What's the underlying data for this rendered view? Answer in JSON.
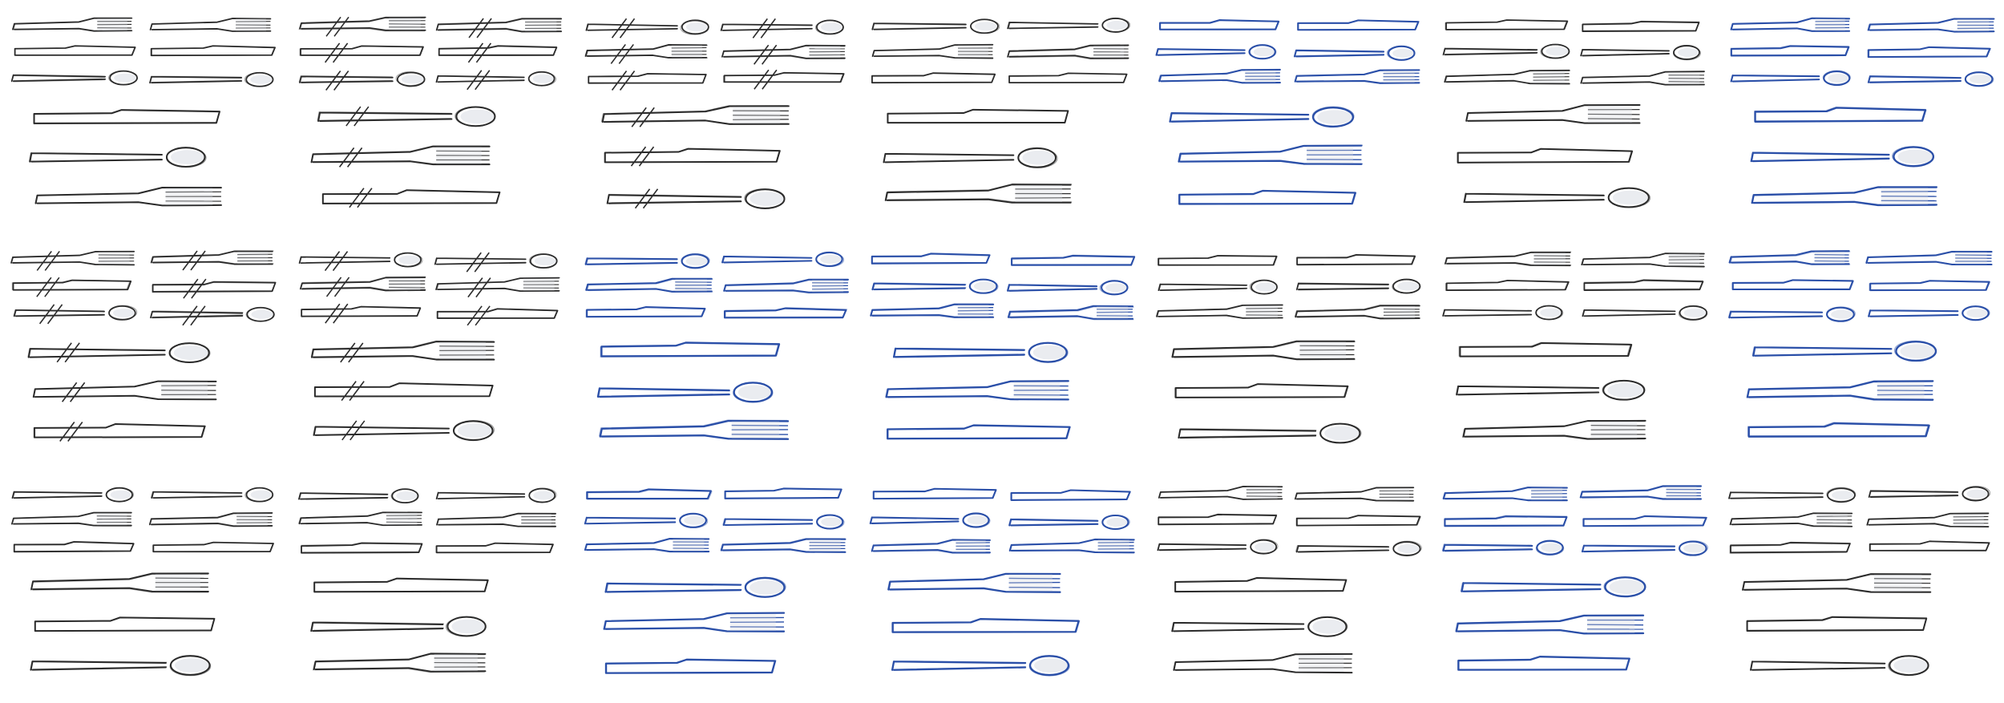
{
  "colors": {
    "background": "#ffffff",
    "pencil": "#2b2b2b",
    "blue_pen": "#2a4fa8",
    "shade": "#d9dce3"
  },
  "grid": {
    "rows": 3,
    "columns": 7
  },
  "panels": [
    {
      "row": 1,
      "col": 1,
      "ink": "pencil",
      "hatched": false
    },
    {
      "row": 1,
      "col": 2,
      "ink": "pencil",
      "hatched": true
    },
    {
      "row": 1,
      "col": 3,
      "ink": "pencil",
      "hatched": true
    },
    {
      "row": 1,
      "col": 4,
      "ink": "pencil",
      "hatched": false
    },
    {
      "row": 1,
      "col": 5,
      "ink": "blue_pen",
      "hatched": false
    },
    {
      "row": 1,
      "col": 6,
      "ink": "pencil",
      "hatched": false
    },
    {
      "row": 1,
      "col": 7,
      "ink": "blue_pen",
      "hatched": false
    },
    {
      "row": 2,
      "col": 1,
      "ink": "pencil",
      "hatched": true
    },
    {
      "row": 2,
      "col": 2,
      "ink": "pencil",
      "hatched": true
    },
    {
      "row": 2,
      "col": 3,
      "ink": "blue_pen",
      "hatched": false
    },
    {
      "row": 2,
      "col": 4,
      "ink": "blue_pen",
      "hatched": false
    },
    {
      "row": 2,
      "col": 5,
      "ink": "pencil",
      "hatched": false
    },
    {
      "row": 2,
      "col": 6,
      "ink": "pencil",
      "hatched": false
    },
    {
      "row": 2,
      "col": 7,
      "ink": "blue_pen",
      "hatched": false
    },
    {
      "row": 3,
      "col": 1,
      "ink": "pencil",
      "hatched": false
    },
    {
      "row": 3,
      "col": 2,
      "ink": "pencil",
      "hatched": false
    },
    {
      "row": 3,
      "col": 3,
      "ink": "blue_pen",
      "hatched": false
    },
    {
      "row": 3,
      "col": 4,
      "ink": "blue_pen",
      "hatched": false
    },
    {
      "row": 3,
      "col": 5,
      "ink": "pencil",
      "hatched": false
    },
    {
      "row": 3,
      "col": 6,
      "ink": "blue_pen",
      "hatched": false
    },
    {
      "row": 3,
      "col": 7,
      "ink": "pencil",
      "hatched": false
    }
  ]
}
